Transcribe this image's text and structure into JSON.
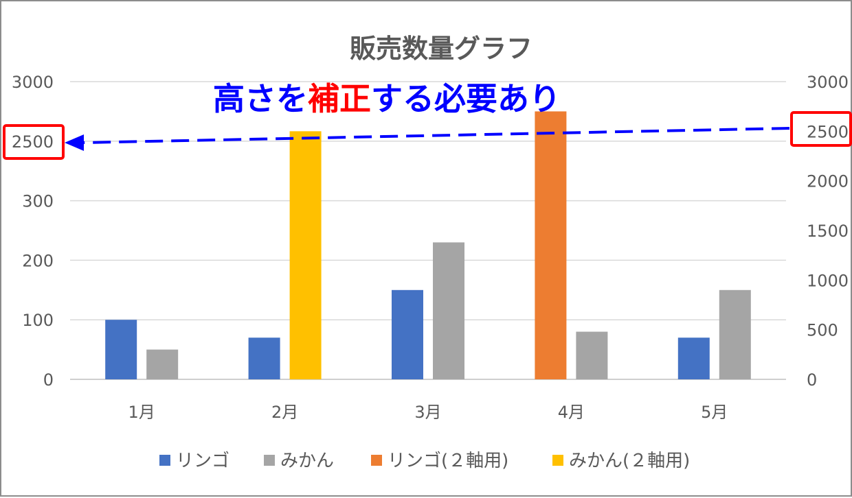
{
  "chart_data": {
    "type": "bar",
    "title": "販売数量グラフ",
    "categories": [
      "1月",
      "2月",
      "3月",
      "4月",
      "5月"
    ],
    "series": [
      {
        "name": "リンゴ",
        "axis": "left",
        "color": "#4472c4",
        "values": [
          100,
          70,
          150,
          null,
          70
        ]
      },
      {
        "name": "みかん",
        "axis": "left",
        "color": "#a5a5a5",
        "values": [
          50,
          null,
          230,
          80,
          150
        ]
      },
      {
        "name": "リンゴ(２軸用)",
        "axis": "right",
        "color": "#ed7d31",
        "values": [
          null,
          null,
          null,
          2700,
          null
        ]
      },
      {
        "name": "みかん(２軸用)",
        "axis": "right",
        "color": "#ffc000",
        "values": [
          null,
          2500,
          null,
          null,
          null
        ]
      }
    ],
    "left_axis": {
      "ticks": [
        "0",
        "100",
        "200",
        "300",
        "2500",
        "3000"
      ],
      "note": "ticks are evenly spaced although labels jump from 300 to 2500"
    },
    "right_axis": {
      "ylim": [
        0,
        3000
      ],
      "ticks": [
        "0",
        "500",
        "1000",
        "1500",
        "2000",
        "2500",
        "3000"
      ]
    },
    "grid": true,
    "legend_position": "bottom",
    "annotation": {
      "parts": [
        {
          "text": "高さを",
          "color": "#0000ff"
        },
        {
          "text": "補正",
          "color": "#ff0000"
        },
        {
          "text": "する必要あり",
          "color": "#0000ff"
        }
      ],
      "arrow_color": "#0000ff",
      "highlight_color": "#ff0000",
      "highlighted_ticks": [
        "2500",
        "2500"
      ]
    }
  }
}
